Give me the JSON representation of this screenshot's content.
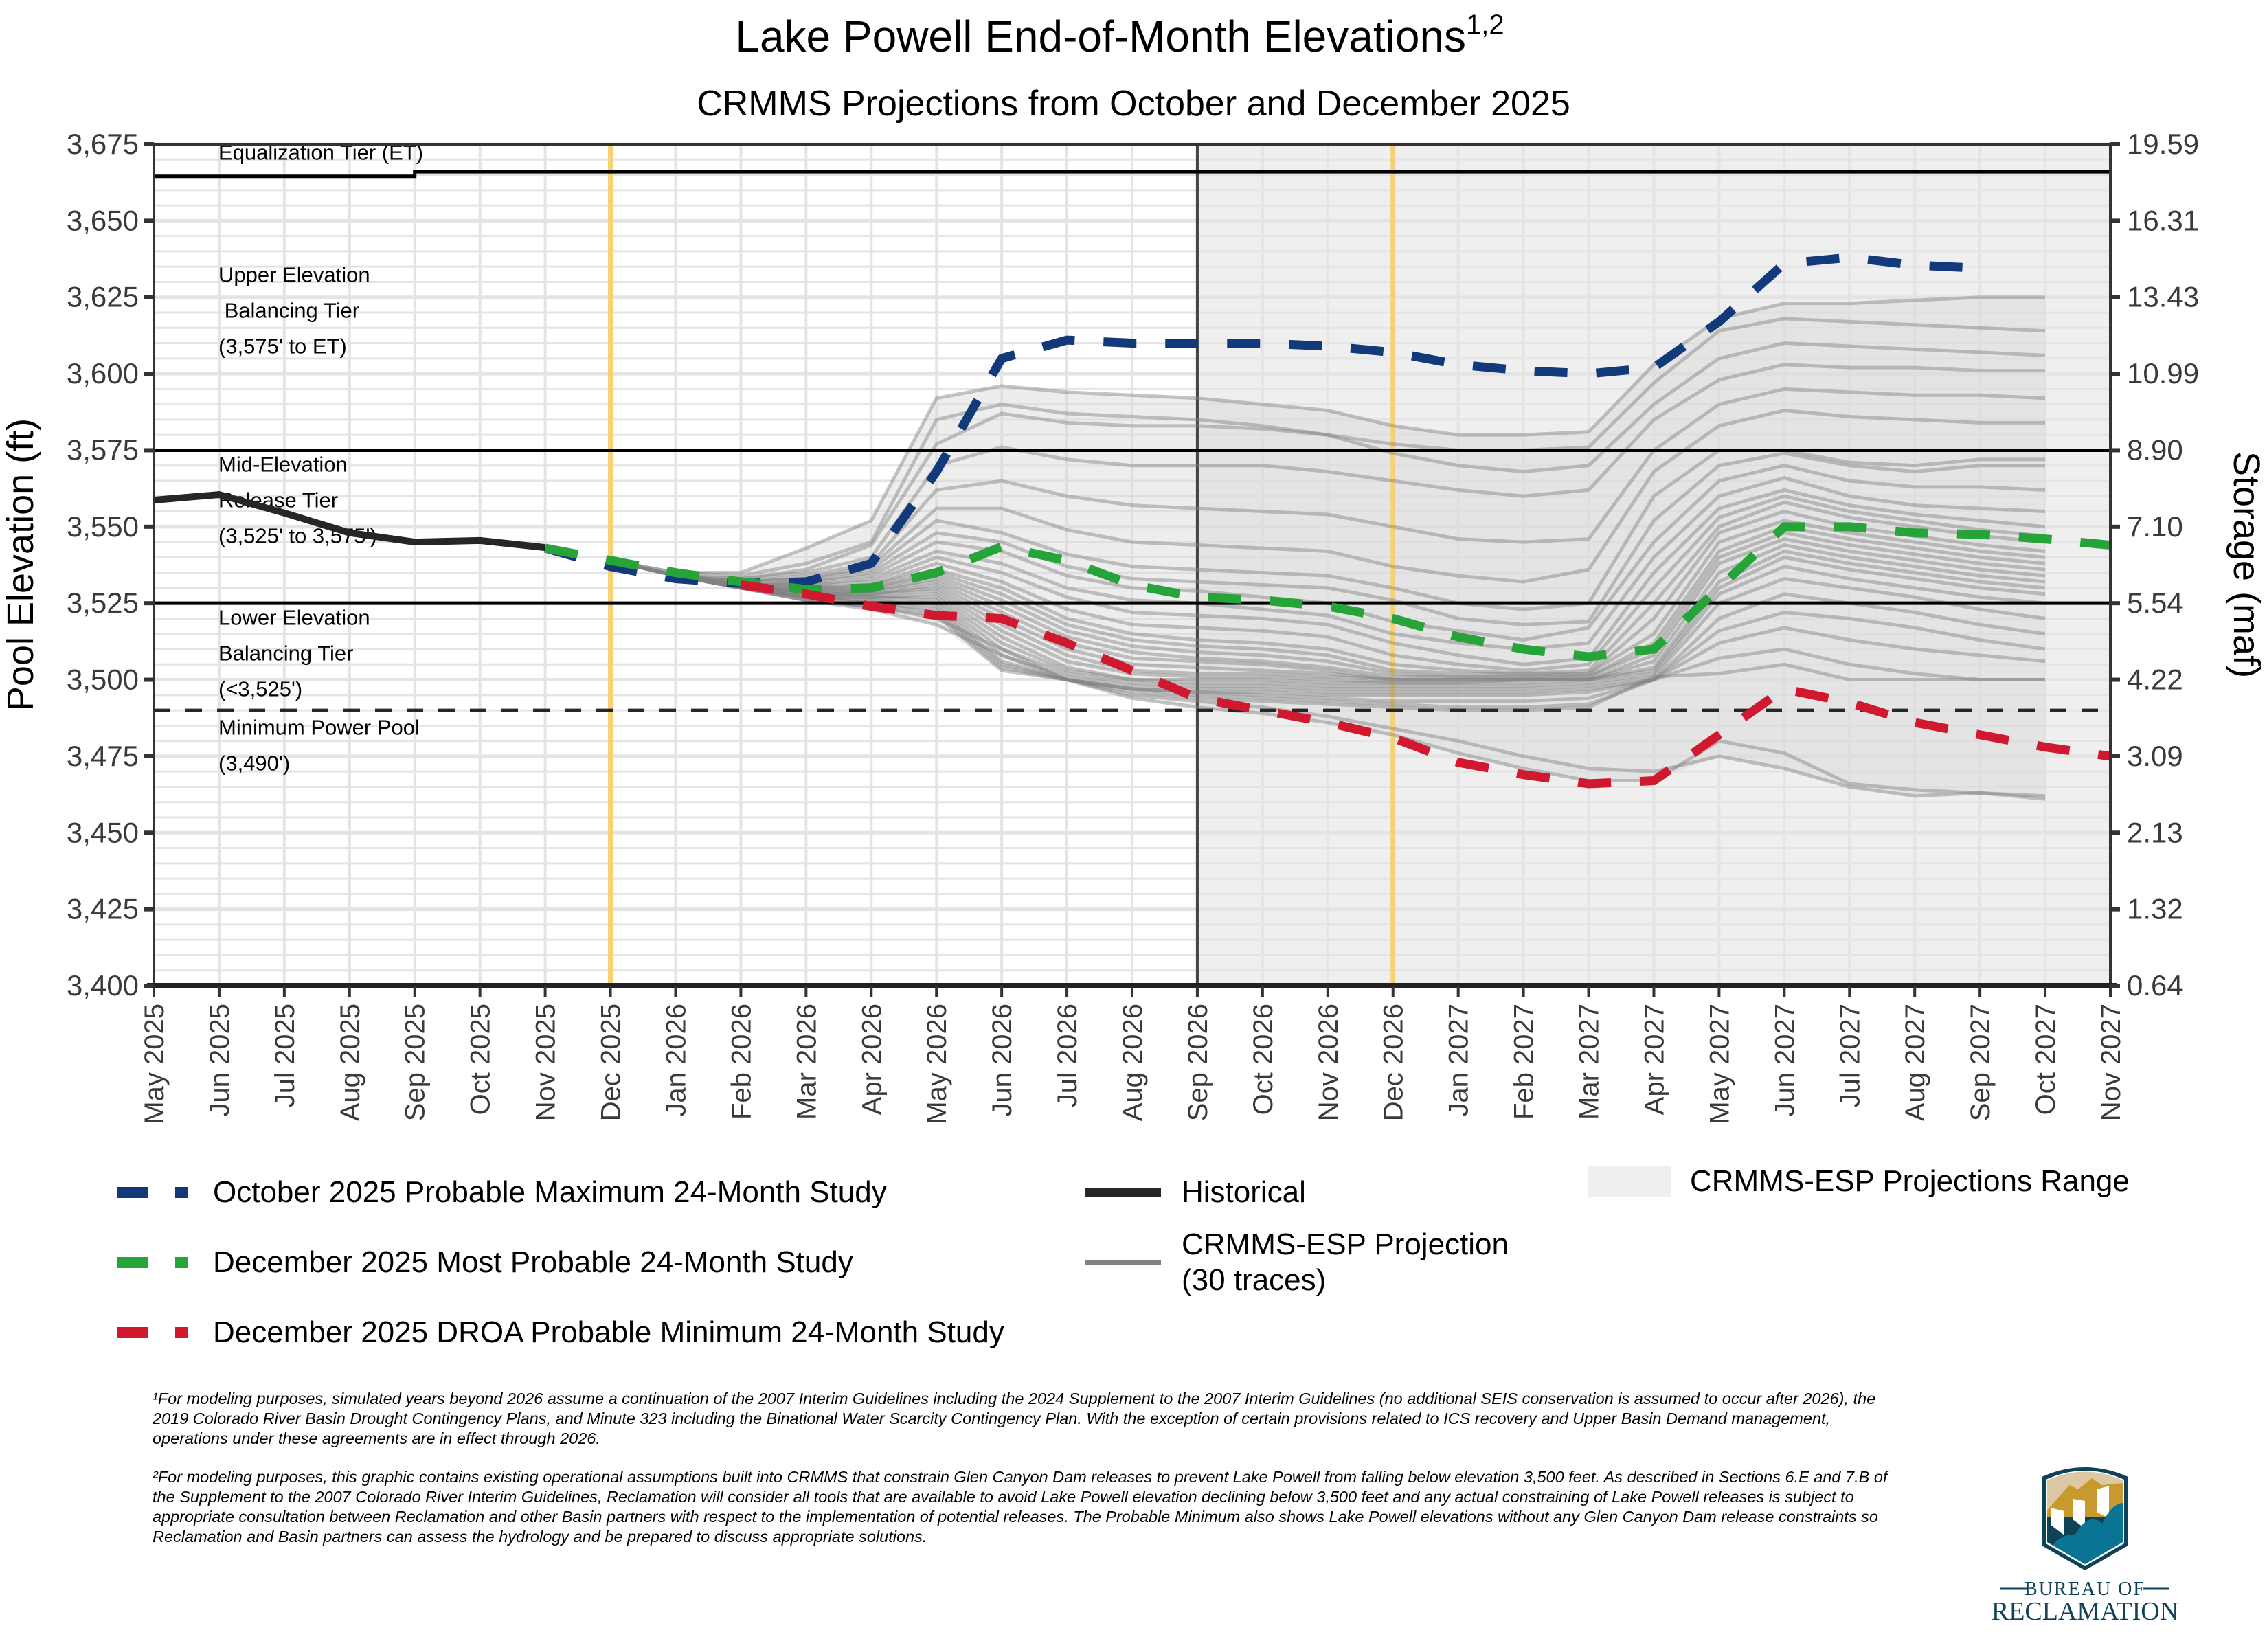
{
  "chart_data": {
    "type": "line",
    "title": "Lake Powell End-of-Month Elevations",
    "title_superscript": "1,2",
    "subtitle": "CRMMS Projections from October and December 2025",
    "ylabel": "Pool Elevation (ft)",
    "y2label": "Storage (maf)",
    "ylim": [
      3400,
      3675
    ],
    "yticks": [
      3400,
      3425,
      3450,
      3475,
      3500,
      3525,
      3550,
      3575,
      3600,
      3625,
      3650,
      3675
    ],
    "ytick_labels": [
      "3,400",
      "3,425",
      "3,450",
      "3,475",
      "3,500",
      "3,525",
      "3,550",
      "3,575",
      "3,600",
      "3,625",
      "3,650",
      "3,675"
    ],
    "y2tick_labels": [
      "0.64",
      "1.32",
      "2.13",
      "3.09",
      "4.22",
      "5.54",
      "7.10",
      "8.90",
      "10.99",
      "13.43",
      "16.31",
      "19.59"
    ],
    "x": [
      "May 2025",
      "Jun 2025",
      "Jul 2025",
      "Aug 2025",
      "Sep 2025",
      "Oct 2025",
      "Nov 2025",
      "Dec 2025",
      "Jan 2026",
      "Feb 2026",
      "Mar 2026",
      "Apr 2026",
      "May 2026",
      "Jun 2026",
      "Jul 2026",
      "Aug 2026",
      "Sep 2026",
      "Oct 2026",
      "Nov 2026",
      "Dec 2026",
      "Jan 2027",
      "Feb 2027",
      "Mar 2027",
      "Apr 2027",
      "May 2027",
      "Jun 2027",
      "Jul 2027",
      "Aug 2027",
      "Sep 2027",
      "Oct 2027",
      "Nov 2027"
    ],
    "grid": true,
    "legend_position": "bottom",
    "reference_lines": [
      {
        "name": "equalization-tier",
        "label": "Equalization Tier (ET)",
        "segments": [
          {
            "from": "May 2025",
            "to": "Sep 2025",
            "y": 3664.5
          },
          {
            "from": "Sep 2025",
            "to": "Nov 2027",
            "y": 3666
          }
        ]
      },
      {
        "name": "upper-tier-boundary",
        "y": 3575
      },
      {
        "name": "lower-tier-boundary",
        "y": 3525
      },
      {
        "name": "minimum-power-pool",
        "y": 3490,
        "style": "dashed"
      }
    ],
    "vertical_markers": [
      {
        "name": "october-study-start",
        "x": "Dec 2025",
        "color": "#f7d274"
      },
      {
        "name": "december-study-start",
        "x": "Dec 2026",
        "color": "#f7d274"
      },
      {
        "name": "esp-range-start",
        "x": "Sep 2026",
        "color": "#444444"
      }
    ],
    "shaded_region": {
      "from": "Sep 2026",
      "to": "Nov 2027",
      "label": "CRMMS-ESP Projections Range"
    },
    "tier_annotations": [
      {
        "lines": [
          "Equalization Tier (ET)"
        ],
        "y": 3670
      },
      {
        "lines": [
          "Upper Elevation",
          " Balancing Tier",
          "(3,575' to ET)"
        ],
        "y": 3630
      },
      {
        "lines": [
          "Mid-Elevation",
          "Release Tier",
          "(3,525' to 3,575')"
        ],
        "y": 3568
      },
      {
        "lines": [
          "Lower Elevation",
          "Balancing Tier",
          "(<3,525')"
        ],
        "y": 3518
      },
      {
        "lines": [
          "Minimum Power Pool",
          "(3,490')"
        ],
        "y": 3482
      }
    ],
    "series": [
      {
        "name": "Historical",
        "color": "#262626",
        "style": "solid",
        "start": "May 2025",
        "values": [
          3558.7,
          3560.5,
          3554.5,
          3548,
          3545,
          3545.5,
          3543.2
        ]
      },
      {
        "name": "October 2025 Probable Maximum 24-Month Study",
        "color": "#123a7a",
        "style": "dashed",
        "start": "Nov 2025",
        "values": [
          3543,
          3537,
          3533,
          3531.5,
          3532,
          3538,
          3568,
          3605,
          3611,
          3610,
          3610,
          3610,
          3609,
          3607,
          3603,
          3601,
          3600,
          3602,
          3617,
          3636,
          3638,
          3635.5,
          3634.5
        ]
      },
      {
        "name": "December 2025 Most Probable 24-Month Study",
        "color": "#26a339",
        "style": "dashed",
        "start": "Nov 2025",
        "values": [
          3543,
          3539,
          3535,
          3532,
          3529.5,
          3530,
          3535,
          3543.5,
          3539,
          3531,
          3527,
          3526,
          3524,
          3520,
          3514,
          3510,
          3507.5,
          3510,
          3530,
          3550,
          3550,
          3548,
          3547.5,
          3546,
          3544
        ]
      },
      {
        "name": "December 2025 DROA Probable Minimum 24-Month Study",
        "color": "#d0192e",
        "style": "dashed",
        "start": "Feb 2026",
        "values": [
          3531,
          3528,
          3524,
          3521,
          3520,
          3512,
          3503,
          3494,
          3490,
          3486,
          3481,
          3473,
          3469,
          3466,
          3467,
          3482,
          3497,
          3492.5,
          3486,
          3482,
          3478,
          3475
        ]
      }
    ],
    "esp_traces": {
      "label": "CRMMS-ESP Projection\n(30 traces)",
      "color": "#808080",
      "start": "Dec 2025",
      "traces": [
        [
          3539,
          3535,
          3535,
          3543,
          3552,
          3592,
          3596,
          3594,
          3593,
          3592,
          3590,
          3588,
          3583,
          3580,
          3580,
          3581,
          3603,
          3618,
          3623,
          3623,
          3624,
          3625,
          3625
        ],
        [
          3539,
          3535,
          3534,
          3538,
          3545,
          3585,
          3590,
          3587,
          3586,
          3585,
          3583,
          3580,
          3577,
          3575,
          3575,
          3576,
          3597,
          3614,
          3618,
          3617,
          3616,
          3615,
          3614
        ],
        [
          3539,
          3534,
          3533,
          3536,
          3544,
          3577,
          3587,
          3584,
          3583,
          3583,
          3582,
          3580,
          3574,
          3570,
          3568,
          3570,
          3590,
          3605,
          3610,
          3609,
          3608,
          3607,
          3606
        ],
        [
          3539,
          3534,
          3533,
          3535,
          3540,
          3570,
          3576,
          3572,
          3570,
          3570,
          3570,
          3568,
          3565,
          3562,
          3560,
          3562,
          3585,
          3598,
          3603,
          3602,
          3602,
          3601,
          3601
        ],
        [
          3539,
          3534,
          3532,
          3534,
          3538,
          3562,
          3565,
          3560,
          3557,
          3556,
          3555,
          3554,
          3550,
          3546,
          3545,
          3546,
          3575,
          3590,
          3595,
          3594,
          3593,
          3593,
          3592
        ],
        [
          3539,
          3534,
          3532,
          3533,
          3537,
          3556,
          3556,
          3549,
          3545,
          3544,
          3543,
          3542,
          3537,
          3534,
          3532,
          3536,
          3568,
          3583,
          3588,
          3586,
          3585,
          3584,
          3584
        ],
        [
          3539,
          3534,
          3532,
          3533,
          3536,
          3552,
          3548,
          3541,
          3537,
          3536,
          3535,
          3534,
          3530,
          3525,
          3523,
          3525,
          3560,
          3575,
          3575,
          3571,
          3570,
          3572,
          3572
        ],
        [
          3539,
          3534,
          3531,
          3532,
          3535,
          3548,
          3545,
          3537,
          3533,
          3532,
          3531,
          3530,
          3526,
          3520,
          3518,
          3519,
          3552,
          3570,
          3574,
          3570,
          3568,
          3570,
          3570
        ],
        [
          3539,
          3534,
          3531,
          3532,
          3534,
          3545,
          3542,
          3534,
          3530,
          3529,
          3527,
          3525,
          3519,
          3516,
          3513,
          3517,
          3545,
          3565,
          3570,
          3565,
          3563,
          3563,
          3562
        ],
        [
          3539,
          3534,
          3531,
          3531,
          3533,
          3542,
          3538,
          3530,
          3526,
          3525,
          3523,
          3521,
          3515,
          3512,
          3510,
          3512,
          3540,
          3560,
          3566,
          3560,
          3557,
          3556,
          3555
        ],
        [
          3539,
          3534,
          3531,
          3531,
          3532,
          3540,
          3535,
          3527,
          3522,
          3521,
          3520,
          3518,
          3512,
          3508,
          3505,
          3507,
          3535,
          3556,
          3562,
          3557,
          3554,
          3552,
          3550
        ],
        [
          3539,
          3534,
          3531,
          3530,
          3531,
          3538,
          3532,
          3523,
          3518,
          3517,
          3516,
          3514,
          3508,
          3505,
          3503,
          3505,
          3530,
          3553,
          3560,
          3555,
          3552,
          3549,
          3547
        ],
        [
          3539,
          3534,
          3530,
          3530,
          3531,
          3536,
          3530,
          3520,
          3515,
          3513,
          3512,
          3510,
          3505,
          3503,
          3502,
          3503,
          3525,
          3550,
          3558,
          3553,
          3550,
          3547,
          3545
        ],
        [
          3539,
          3534,
          3530,
          3530,
          3530,
          3535,
          3528,
          3518,
          3513,
          3511,
          3510,
          3508,
          3503,
          3502,
          3502,
          3502,
          3520,
          3548,
          3555,
          3550,
          3547,
          3544,
          3542
        ],
        [
          3539,
          3534,
          3530,
          3529,
          3530,
          3534,
          3526,
          3516,
          3511,
          3509,
          3508,
          3506,
          3502,
          3501,
          3501,
          3502,
          3515,
          3545,
          3552,
          3548,
          3545,
          3542,
          3540
        ],
        [
          3539,
          3534,
          3530,
          3529,
          3529,
          3533,
          3524,
          3514,
          3509,
          3507,
          3506,
          3504,
          3501,
          3501,
          3501,
          3501,
          3512,
          3542,
          3550,
          3546,
          3543,
          3540,
          3538
        ],
        [
          3539,
          3534,
          3530,
          3529,
          3529,
          3532,
          3522,
          3512,
          3507,
          3506,
          3505,
          3503,
          3500,
          3500,
          3500,
          3501,
          3510,
          3540,
          3548,
          3544,
          3541,
          3538,
          3536
        ],
        [
          3539,
          3534,
          3530,
          3529,
          3528,
          3531,
          3520,
          3510,
          3505,
          3504,
          3503,
          3502,
          3500,
          3500,
          3500,
          3500,
          3508,
          3538,
          3546,
          3542,
          3539,
          3536,
          3534
        ],
        [
          3539,
          3534,
          3530,
          3528,
          3528,
          3530,
          3518,
          3508,
          3503,
          3502,
          3502,
          3501,
          3500,
          3500,
          3500,
          3500,
          3506,
          3535,
          3544,
          3540,
          3537,
          3534,
          3532
        ],
        [
          3539,
          3534,
          3530,
          3528,
          3528,
          3529,
          3516,
          3506,
          3502,
          3501,
          3501,
          3500,
          3499,
          3499,
          3500,
          3500,
          3504,
          3532,
          3542,
          3538,
          3535,
          3532,
          3530
        ],
        [
          3539,
          3534,
          3530,
          3528,
          3527,
          3528,
          3514,
          3504,
          3500,
          3500,
          3500,
          3499,
          3499,
          3499,
          3499,
          3500,
          3503,
          3530,
          3540,
          3536,
          3533,
          3530,
          3528
        ],
        [
          3539,
          3534,
          3530,
          3528,
          3527,
          3527,
          3512,
          3503,
          3500,
          3499,
          3499,
          3498,
          3498,
          3498,
          3498,
          3499,
          3502,
          3528,
          3537,
          3533,
          3530,
          3527,
          3525
        ],
        [
          3539,
          3534,
          3530,
          3527,
          3527,
          3526,
          3510,
          3502,
          3499,
          3498,
          3498,
          3497,
          3497,
          3497,
          3497,
          3498,
          3501,
          3525,
          3533,
          3530,
          3527,
          3523,
          3520
        ],
        [
          3539,
          3534,
          3530,
          3527,
          3526,
          3525,
          3508,
          3501,
          3498,
          3497,
          3497,
          3496,
          3496,
          3496,
          3496,
          3497,
          3500,
          3520,
          3528,
          3525,
          3522,
          3518,
          3515
        ],
        [
          3539,
          3534,
          3530,
          3527,
          3526,
          3524,
          3506,
          3500,
          3497,
          3496,
          3496,
          3495,
          3495,
          3495,
          3495,
          3496,
          3500,
          3516,
          3522,
          3520,
          3517,
          3513,
          3510
        ],
        [
          3539,
          3534,
          3530,
          3527,
          3525,
          3523,
          3505,
          3500,
          3497,
          3496,
          3495,
          3494,
          3493,
          3493,
          3493,
          3494,
          3500,
          3512,
          3517,
          3513,
          3510,
          3508,
          3506
        ],
        [
          3539,
          3534,
          3530,
          3527,
          3525,
          3522,
          3504,
          3500,
          3497,
          3495,
          3494,
          3493,
          3492,
          3491,
          3491,
          3492,
          3500,
          3507,
          3510,
          3505,
          3502,
          3500,
          3500
        ],
        [
          3539,
          3534,
          3530,
          3526,
          3524,
          3521,
          3503,
          3500,
          3496,
          3494,
          3493,
          3492,
          3491,
          3490,
          3490,
          3491,
          3501,
          3502,
          3505,
          3500,
          3500,
          3500,
          3500
        ],
        [
          3539,
          3534,
          3530,
          3526,
          3524,
          3520,
          3510,
          3500,
          3495,
          3493,
          3491,
          3488,
          3484,
          3480,
          3475,
          3471,
          3470,
          3475,
          3471,
          3465,
          3462,
          3463,
          3462
        ],
        [
          3539,
          3534,
          3530,
          3526,
          3523,
          3518,
          3508,
          3500,
          3494,
          3491,
          3489,
          3486,
          3482,
          3476,
          3471,
          3467,
          3467,
          3480,
          3476,
          3466,
          3464,
          3463,
          3461
        ]
      ]
    }
  },
  "legend": {
    "items": [
      {
        "label": "October 2025 Probable Maximum 24-Month Study",
        "color": "#123a7a",
        "kind": "dashed"
      },
      {
        "label": "December 2025 Most Probable 24-Month Study",
        "color": "#26a339",
        "kind": "dashed"
      },
      {
        "label": "December 2025 DROA Probable Minimum 24-Month Study",
        "color": "#d0192e",
        "kind": "dashed"
      },
      {
        "label": "Historical",
        "color": "#262626",
        "kind": "thick"
      },
      {
        "label": "CRMMS-ESP Projection\n(30 traces)",
        "color": "#808080",
        "kind": "thin"
      },
      {
        "label": "CRMMS-ESP Projections Range",
        "color": "#efefef",
        "kind": "box"
      }
    ]
  },
  "footnotes": [
    "¹For modeling purposes, simulated years beyond 2026 assume a continuation of the 2007 Interim Guidelines including the 2024 Supplement to the 2007 Interim Guidelines (no additional SEIS conservation is assumed to occur after 2026), the 2019 Colorado River Basin Drought Contingency Plans, and Minute 323 including the Binational Water Scarcity Contingency Plan. With the exception of certain provisions related to ICS recovery and Upper Basin Demand management, operations under these agreements are in effect through 2026.",
    "²For modeling purposes, this graphic contains existing operational assumptions built into CRMMS that constrain Glen Canyon Dam releases to prevent Lake Powell from falling below elevation 3,500 feet. As described in Sections 6.E and 7.B of the Supplement to the 2007 Colorado River Interim Guidelines, Reclamation will consider all tools that are available to avoid Lake Powell elevation declining below 3,500 feet and any actual constraining of Lake Powell releases is subject to appropriate consultation between Reclamation and other Basin partners with respect to the implementation of potential releases. The Probable Minimum also shows Lake Powell elevations without any Glen Canyon Dam release constraints so Reclamation and Basin partners can assess the hydrology and be prepared to discuss appropriate solutions."
  ],
  "logo": {
    "line1": "BUREAU OF",
    "line2": "RECLAMATION",
    "colors": {
      "navy": "#0f4256",
      "teal": "#0a7494",
      "gold": "#c8992f",
      "sand": "#dcc9a4"
    }
  }
}
